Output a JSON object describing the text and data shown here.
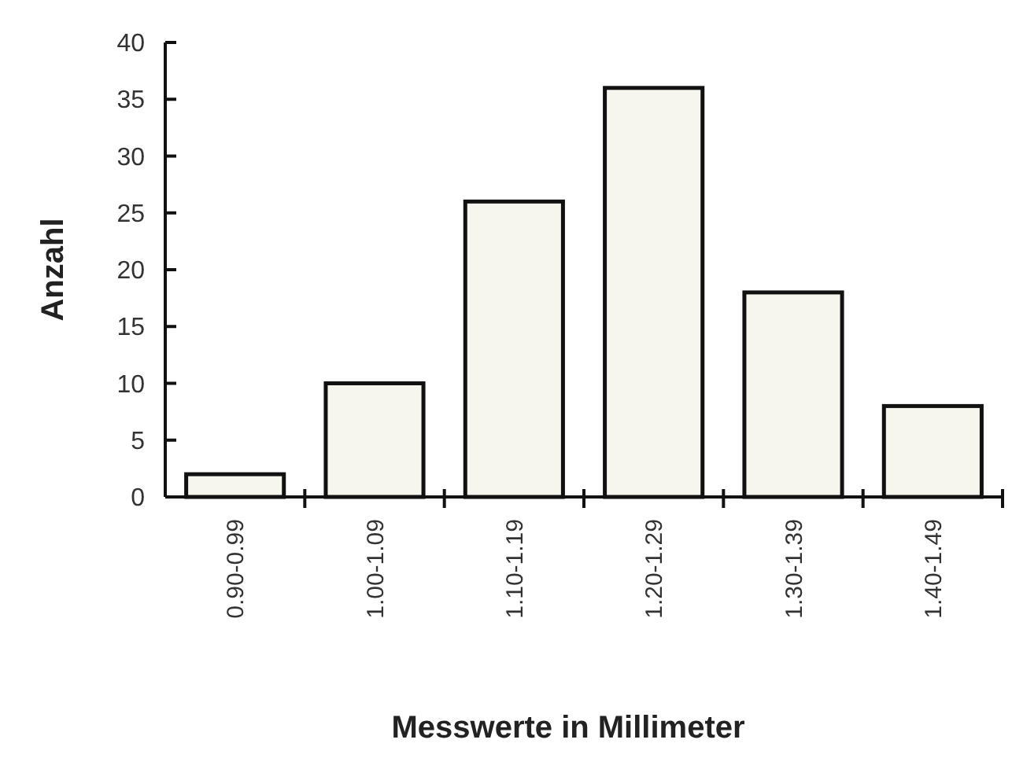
{
  "chart_data": {
    "type": "bar",
    "xlabel": "Messwerte in Millimeter",
    "ylabel": "Anzahl",
    "categories": [
      "0.90-0.99",
      "1.00-1.09",
      "1.10-1.19",
      "1.20-1.29",
      "1.30-1.39",
      "1.40-1.49"
    ],
    "values": [
      2,
      10,
      26,
      36,
      18,
      8
    ],
    "color": "#f7f6ee",
    "ylim": [
      0,
      40
    ],
    "yticks": [
      0,
      5,
      10,
      15,
      20,
      25,
      30,
      35,
      40
    ],
    "grid": false
  }
}
